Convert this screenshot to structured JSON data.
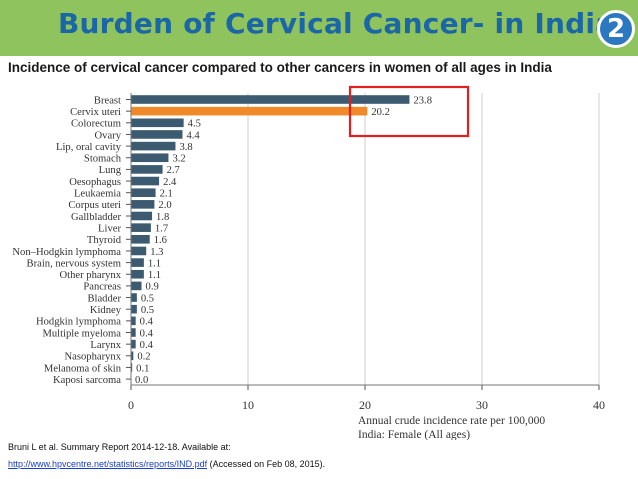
{
  "header": {
    "title": "Burden of Cervical Cancer- in India",
    "badge": "2",
    "subtitle": "Incidence of cervical cancer compared to other cancers in women of all ages in India"
  },
  "colors": {
    "header_bg": "#8fc35d",
    "title": "#1b66a6",
    "bar": "#3c5b70",
    "highlight_bar": "#f0892a",
    "highlight_box": "#e02020"
  },
  "chart_data": {
    "type": "bar",
    "orientation": "horizontal",
    "categories": [
      "Breast",
      "Cervix uteri",
      "Colorectum",
      "Ovary",
      "Lip, oral cavity",
      "Stomach",
      "Lung",
      "Oesophagus",
      "Leukaemia",
      "Corpus uteri",
      "Gallbladder",
      "Liver",
      "Thyroid",
      "Non–Hodgkin lymphoma",
      "Brain, nervous system",
      "Other pharynx",
      "Pancreas",
      "Bladder",
      "Kidney",
      "Hodgkin lymphoma",
      "Multiple myeloma",
      "Larynx",
      "Nasopharynx",
      "Melanoma of skin",
      "Kaposi sarcoma"
    ],
    "values": [
      23.8,
      20.2,
      4.5,
      4.4,
      3.8,
      3.2,
      2.7,
      2.4,
      2.1,
      2.0,
      1.8,
      1.7,
      1.6,
      1.3,
      1.1,
      1.1,
      0.9,
      0.5,
      0.5,
      0.4,
      0.4,
      0.4,
      0.2,
      0.1,
      0.0
    ],
    "value_labels": [
      "23.8",
      "20.2",
      "4.5",
      "4.4",
      "3.8",
      "3.2",
      "2.7",
      "2.4",
      "2.1",
      "2.0",
      "1.8",
      "1.7",
      "1.6",
      "1.3",
      "1.1",
      "1.1",
      "0.9",
      "0.5",
      "0.5",
      "0.4",
      "0.4",
      "0.4",
      "0.2",
      "0.1",
      "0.0"
    ],
    "highlight_index": 1,
    "xlim": [
      0,
      40
    ],
    "xticks": [
      0,
      10,
      20,
      30,
      40
    ],
    "xlabel_lines": [
      "Annual crude incidence rate per 100,000",
      "India: Female  (All ages)"
    ],
    "grid": true
  },
  "footer": {
    "reference": "Bruni L et al. Summary Report 2014-12-18. Available at:",
    "url": "http://www.hpvcentre.net/statistics/reports/IND.pdf",
    "accessed": " (Accessed on Feb 08, 2015)."
  }
}
